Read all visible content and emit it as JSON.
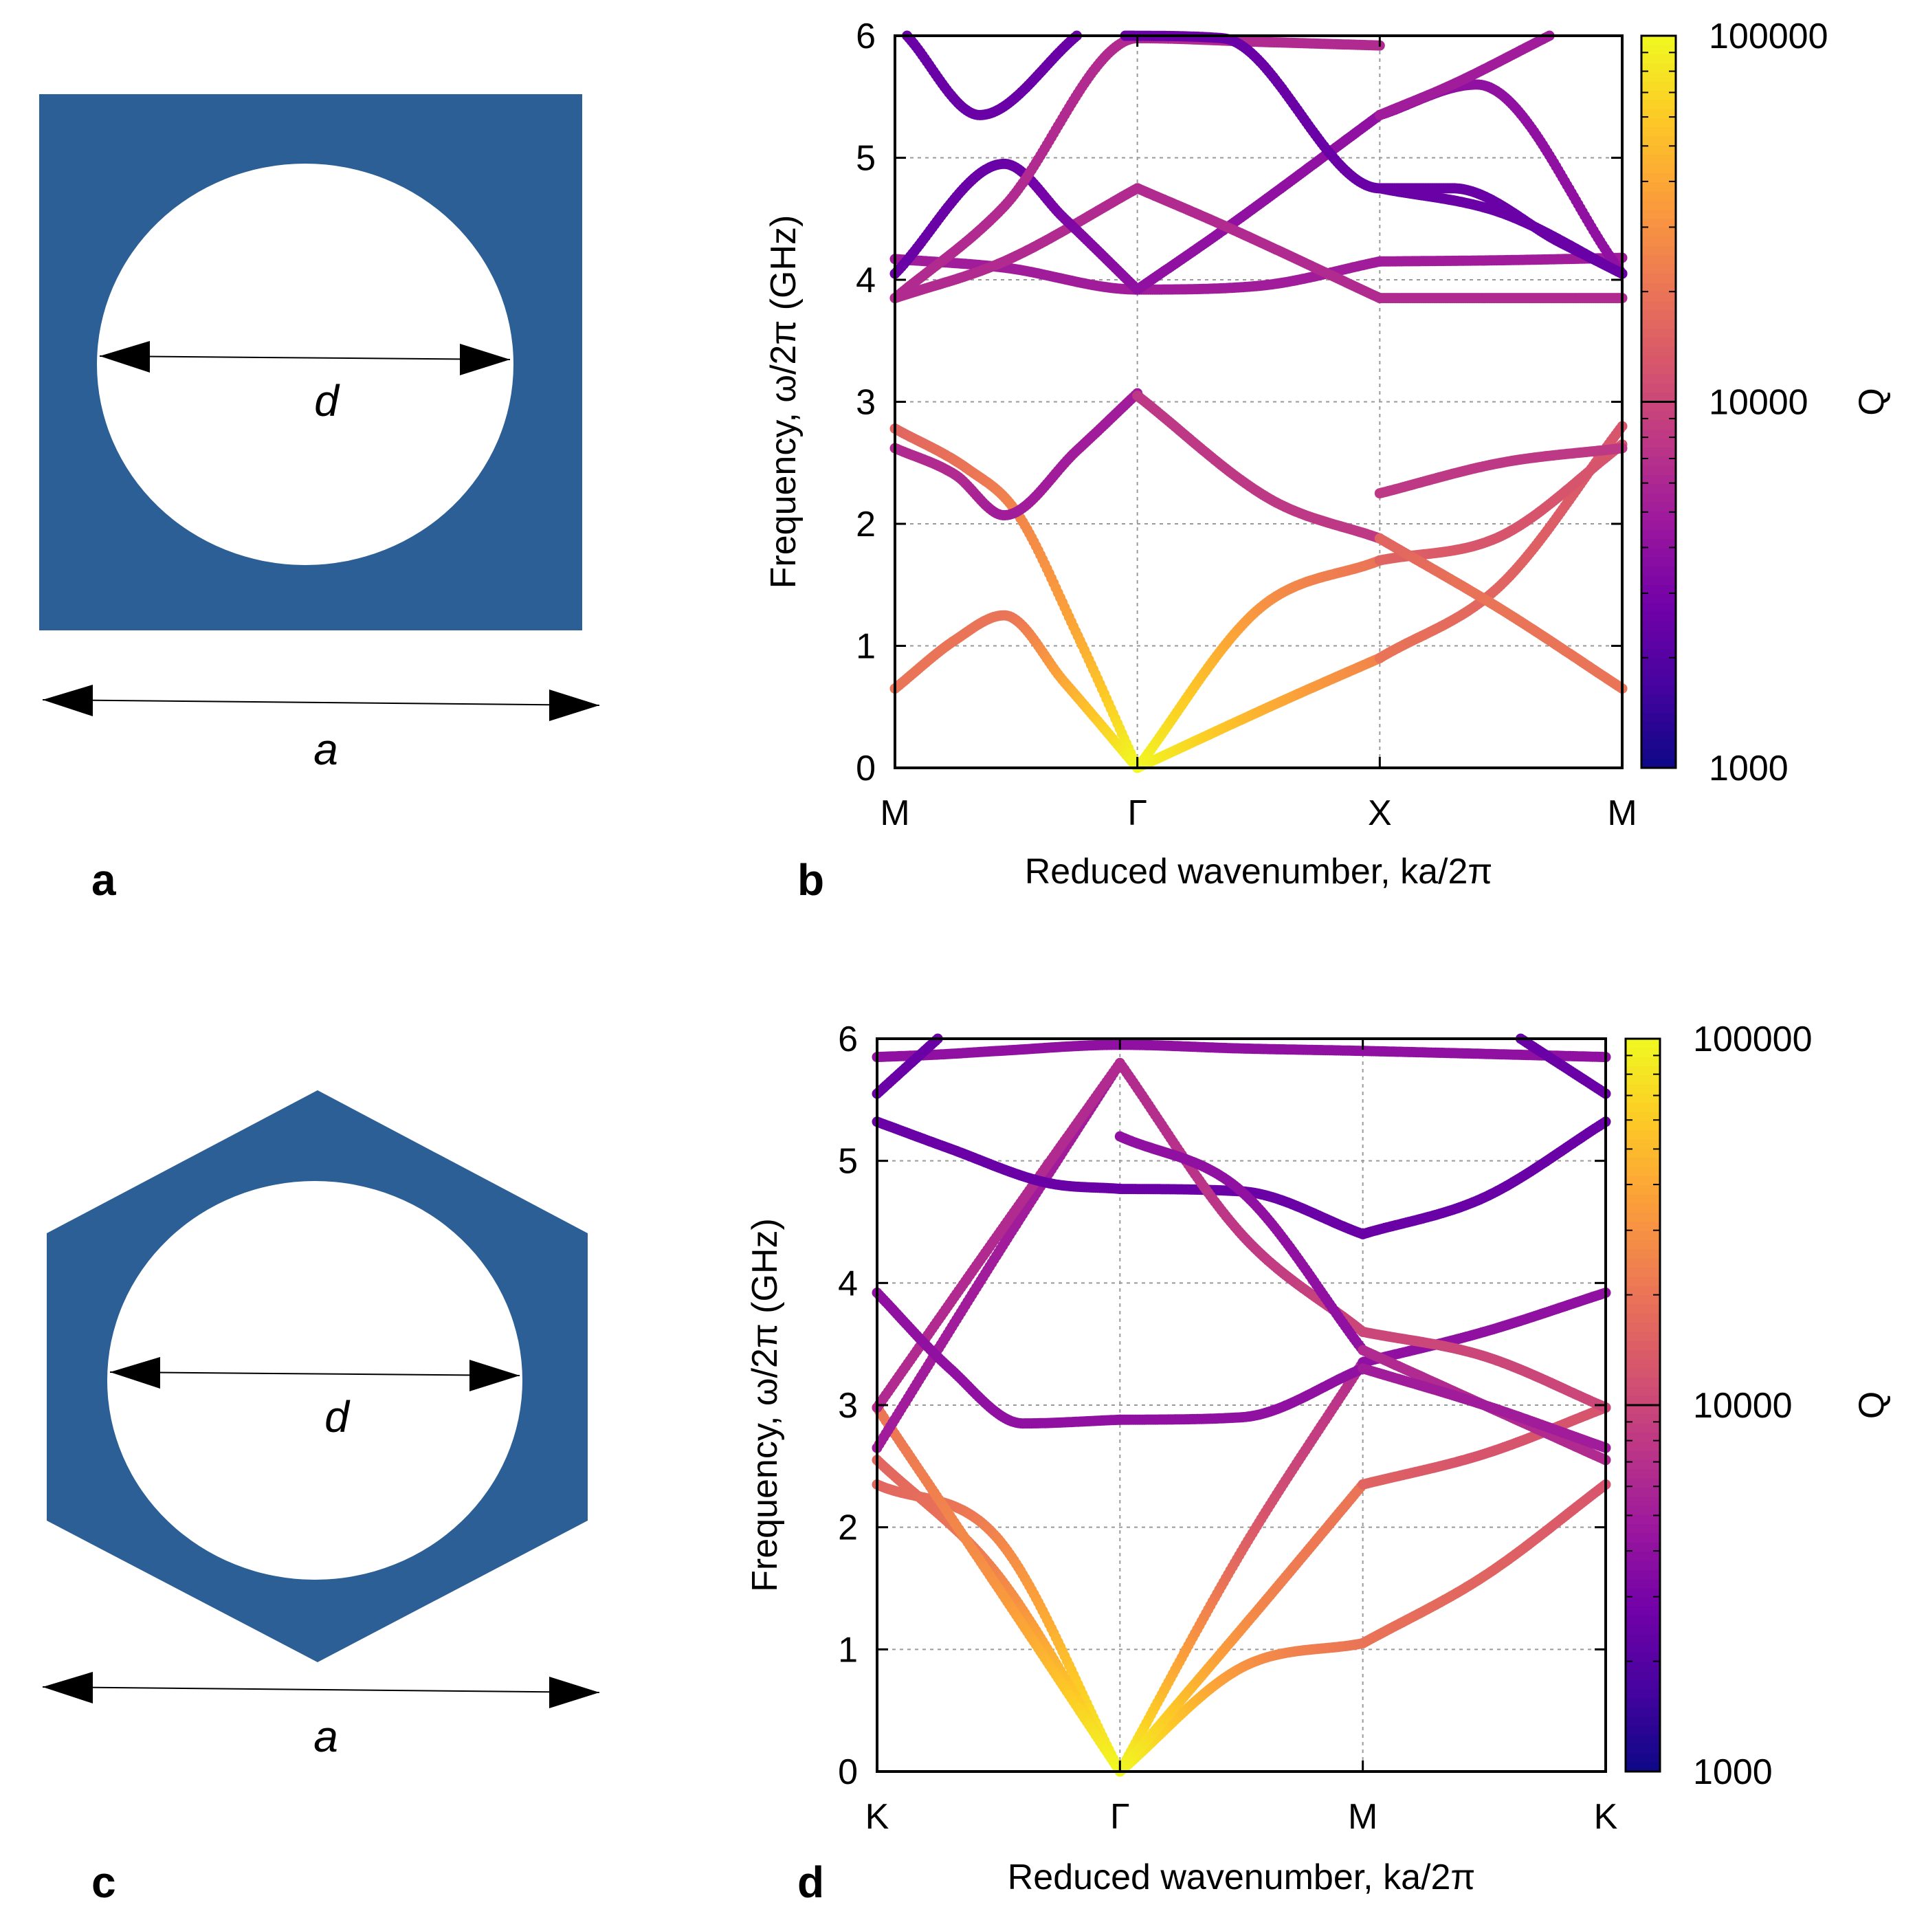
{
  "colors": {
    "cell_fill": "#2c5f95",
    "hole_fill": "#ffffff",
    "axis": "#000000",
    "grid": "#9a9a9a"
  },
  "colormap": [
    "#0d0887",
    "#46039f",
    "#7201a8",
    "#9c179e",
    "#bd3786",
    "#d8576b",
    "#ed7953",
    "#fb9f3a",
    "#fdca26",
    "#f0f921"
  ],
  "panel_a": {
    "letter": "a",
    "hole_label": "d",
    "width_label": "a",
    "shape": "square unit cell with circular hole"
  },
  "panel_c": {
    "letter": "c",
    "hole_label": "d",
    "width_label": "a",
    "shape": "hexagonal unit cell with circular hole"
  },
  "chart_data": [
    {
      "id": "b",
      "letter": "b",
      "type": "scatter",
      "title": "",
      "xlabel": "Reduced wavenumber, ka/2π",
      "ylabel": "Frequency, ω/2π (GHz)",
      "xticks": [
        "M",
        "Γ",
        "X",
        "M"
      ],
      "xticks_pos": [
        0,
        1,
        2,
        3
      ],
      "ylim": [
        0,
        6
      ],
      "yticks": [
        "0",
        "1",
        "2",
        "3",
        "4",
        "5",
        "6"
      ],
      "colorbar": {
        "label": "Q",
        "scale": "log",
        "range": [
          1000,
          100000
        ],
        "ticks": [
          "1000",
          "10000",
          "100000"
        ]
      },
      "series": [
        {
          "name": "band1",
          "x": [
            0,
            0.25,
            0.45,
            0.7,
            1
          ],
          "y": [
            0.65,
            1.05,
            1.25,
            0.7,
            0
          ],
          "q_log": [
            4.3,
            4.3,
            4.3,
            4.6,
            5
          ]
        },
        {
          "name": "band2",
          "x": [
            0,
            0.3,
            0.5,
            0.75,
            1
          ],
          "y": [
            2.78,
            2.45,
            2.1,
            1.1,
            0
          ],
          "q_log": [
            4.2,
            4.3,
            4.4,
            4.6,
            5
          ]
        },
        {
          "name": "band3",
          "x": [
            0,
            0.25,
            0.45,
            0.75,
            1
          ],
          "y": [
            2.62,
            2.4,
            2.07,
            2.6,
            3.07
          ],
          "q_log": [
            3.8,
            3.8,
            3.7,
            3.7,
            3.7
          ]
        },
        {
          "name": "band4",
          "x": [
            0,
            0.45,
            1,
            1.5,
            2
          ],
          "y": [
            4.17,
            4.1,
            3.92,
            3.95,
            4.15
          ],
          "q_log": [
            3.7,
            3.7,
            3.7,
            3.7,
            3.7
          ]
        },
        {
          "name": "band5",
          "x": [
            0,
            0.45,
            1
          ],
          "y": [
            3.85,
            4.15,
            4.75
          ],
          "q_log": [
            3.8,
            3.8,
            3.8
          ]
        },
        {
          "name": "band6",
          "x": [
            0,
            0.45,
            0.7,
            1
          ],
          "y": [
            4.05,
            4.95,
            4.5,
            3.92
          ],
          "q_log": [
            3.4,
            3.4,
            3.5,
            3.6
          ]
        },
        {
          "name": "band7",
          "x": [
            1,
            1.35,
            2
          ],
          "y": [
            3.92,
            4.4,
            5.35
          ],
          "q_log": [
            3.6,
            3.6,
            3.6
          ]
        },
        {
          "name": "band8",
          "x": [
            1,
            1.35,
            2
          ],
          "y": [
            4.75,
            4.45,
            3.85
          ],
          "q_log": [
            3.8,
            3.8,
            3.8
          ]
        },
        {
          "name": "band9",
          "x": [
            0,
            0.45,
            1,
            1.5,
            2
          ],
          "y": [
            3.85,
            4.6,
            5.98,
            5.95,
            5.92
          ],
          "q_log": [
            3.8,
            3.8,
            3.8,
            3.8,
            3.8
          ]
        },
        {
          "name": "band10",
          "x": [
            1,
            1.55,
            2
          ],
          "y": [
            3.05,
            2.2,
            1.88
          ],
          "q_log": [
            3.9,
            3.9,
            3.9
          ]
        },
        {
          "name": "band11",
          "x": [
            1,
            1.5,
            2
          ],
          "y": [
            0,
            1.3,
            1.7
          ],
          "q_log": [
            5,
            4.5,
            4.3
          ]
        },
        {
          "name": "band12",
          "x": [
            1,
            1.6,
            2
          ],
          "y": [
            0,
            0.55,
            0.9
          ],
          "q_log": [
            5,
            4.6,
            4.4
          ]
        },
        {
          "name": "band13",
          "x": [
            2,
            2.5,
            3
          ],
          "y": [
            0.9,
            1.5,
            2.8
          ],
          "q_log": [
            4.3,
            4.2,
            4.1
          ]
        },
        {
          "name": "band14",
          "x": [
            2,
            2.5,
            3
          ],
          "y": [
            1.7,
            1.9,
            2.65
          ],
          "q_log": [
            4.2,
            4.1,
            4.1
          ]
        },
        {
          "name": "band15",
          "x": [
            2,
            2.5,
            3
          ],
          "y": [
            1.88,
            1.3,
            0.65
          ],
          "q_log": [
            4.2,
            4.3,
            4.3
          ]
        },
        {
          "name": "band16",
          "x": [
            2,
            2.5,
            3
          ],
          "y": [
            2.25,
            2.5,
            2.62
          ],
          "q_log": [
            3.9,
            3.9,
            3.9
          ]
        },
        {
          "name": "band17",
          "x": [
            2,
            2.5,
            3
          ],
          "y": [
            3.85,
            3.85,
            3.85
          ],
          "q_log": [
            3.8,
            3.8,
            3.8
          ]
        },
        {
          "name": "band18",
          "x": [
            2,
            2.5,
            3
          ],
          "y": [
            4.15,
            4.16,
            4.18
          ],
          "q_log": [
            3.7,
            3.7,
            3.7
          ]
        },
        {
          "name": "band19",
          "x": [
            2,
            2.5,
            3
          ],
          "y": [
            4.75,
            4.55,
            4.05
          ],
          "q_log": [
            3.4,
            3.4,
            3.4
          ]
        },
        {
          "name": "band20",
          "x": [
            2,
            2.4,
            3
          ],
          "y": [
            5.35,
            5.6,
            4.05
          ],
          "q_log": [
            3.6,
            3.6,
            3.6
          ]
        },
        {
          "name": "band21",
          "x": [
            2,
            2.3,
            2.7
          ],
          "y": [
            5.35,
            5.6,
            6
          ],
          "q_log": [
            3.7,
            3.7,
            3.7
          ]
        },
        {
          "name": "band22",
          "x": [
            0.95,
            1.35,
            2,
            2.3,
            2.75,
            3
          ],
          "y": [
            6,
            5.98,
            4.75,
            4.75,
            4.3,
            4.05
          ],
          "q_log": [
            3.4,
            3.4,
            3.4,
            3.4,
            3.4,
            3.4
          ]
        },
        {
          "name": "band23",
          "x": [
            0.05,
            0.35,
            0.75
          ],
          "y": [
            6,
            5.35,
            6
          ],
          "q_log": [
            3.4,
            3.4,
            3.4
          ]
        }
      ]
    },
    {
      "id": "d",
      "letter": "d",
      "type": "scatter",
      "title": "",
      "xlabel": "Reduced wavenumber, ka/2π",
      "ylabel": "Frequency, ω/2π (GHz)",
      "xticks": [
        "K",
        "Γ",
        "M",
        "K"
      ],
      "xticks_pos": [
        0,
        1,
        2,
        3
      ],
      "ylim": [
        0,
        6
      ],
      "yticks": [
        "0",
        "1",
        "2",
        "3",
        "4",
        "5",
        "6"
      ],
      "colorbar": {
        "label": "Q",
        "scale": "log",
        "range": [
          1000,
          100000
        ],
        "ticks": [
          "1000",
          "10000",
          "100000"
        ]
      },
      "series": [
        {
          "name": "band1",
          "x": [
            0,
            0.5,
            1
          ],
          "y": [
            2.35,
            1.9,
            0
          ],
          "q_log": [
            4.2,
            4.4,
            5
          ]
        },
        {
          "name": "band2",
          "x": [
            0,
            0.5,
            1
          ],
          "y": [
            2.55,
            1.6,
            0
          ],
          "q_log": [
            4.2,
            4.4,
            5
          ]
        },
        {
          "name": "band3",
          "x": [
            0,
            0.5,
            1
          ],
          "y": [
            2.98,
            1.5,
            0
          ],
          "q_log": [
            4.3,
            4.5,
            5
          ]
        },
        {
          "name": "band4",
          "x": [
            0,
            0.5,
            1
          ],
          "y": [
            2.65,
            4.25,
            5.8
          ],
          "q_log": [
            3.7,
            3.7,
            3.7
          ]
        },
        {
          "name": "band5",
          "x": [
            0,
            0.5,
            1
          ],
          "y": [
            2.98,
            4.4,
            5.8
          ],
          "q_log": [
            3.8,
            3.8,
            3.8
          ]
        },
        {
          "name": "band6",
          "x": [
            0,
            0.3,
            0.6,
            1
          ],
          "y": [
            3.92,
            3.3,
            2.85,
            2.88
          ],
          "q_log": [
            3.6,
            3.6,
            3.6,
            3.6
          ]
        },
        {
          "name": "band7",
          "x": [
            0,
            0.3,
            0.7,
            1
          ],
          "y": [
            5.32,
            5.1,
            4.82,
            4.77
          ],
          "q_log": [
            3.4,
            3.4,
            3.4,
            3.4
          ]
        },
        {
          "name": "band8",
          "x": [
            0,
            0.25,
            0.5,
            1,
            1.5,
            2,
            3
          ],
          "y": [
            5.85,
            5.87,
            5.9,
            5.95,
            5.92,
            5.9,
            5.85
          ],
          "q_log": [
            3.6,
            3.6,
            3.6,
            3.6,
            3.6,
            3.6,
            3.6
          ]
        },
        {
          "name": "band9",
          "x": [
            0,
            0.25
          ],
          "y": [
            5.55,
            6
          ],
          "q_log": [
            3.4,
            3.4
          ]
        },
        {
          "name": "band10",
          "x": [
            1,
            1.5,
            2
          ],
          "y": [
            0,
            1.8,
            3.35
          ],
          "q_log": [
            5,
            4.2,
            3.8
          ]
        },
        {
          "name": "band11",
          "x": [
            1,
            1.5,
            2
          ],
          "y": [
            0,
            0.85,
            1.05
          ],
          "q_log": [
            5,
            4.5,
            4.3
          ]
        },
        {
          "name": "band12",
          "x": [
            1,
            1.6,
            2
          ],
          "y": [
            0,
            1.4,
            2.35
          ],
          "q_log": [
            5,
            4.4,
            4.3
          ]
        },
        {
          "name": "band13",
          "x": [
            1,
            1.5,
            2
          ],
          "y": [
            2.88,
            2.9,
            3.3
          ],
          "q_log": [
            3.6,
            3.6,
            3.6
          ]
        },
        {
          "name": "band14",
          "x": [
            1,
            1.5,
            2
          ],
          "y": [
            4.77,
            4.75,
            4.4
          ],
          "q_log": [
            3.4,
            3.4,
            3.4
          ]
        },
        {
          "name": "band15",
          "x": [
            1,
            1.5,
            2
          ],
          "y": [
            5.8,
            4.4,
            3.6
          ],
          "q_log": [
            3.8,
            3.9,
            4.0
          ]
        },
        {
          "name": "band16",
          "x": [
            1,
            1.5,
            2
          ],
          "y": [
            5.2,
            4.75,
            3.45
          ],
          "q_log": [
            3.6,
            3.6,
            3.6
          ]
        },
        {
          "name": "band17",
          "x": [
            2,
            2.5,
            3
          ],
          "y": [
            1.05,
            1.6,
            2.35
          ],
          "q_log": [
            4.3,
            4.2,
            4.1
          ]
        },
        {
          "name": "band18",
          "x": [
            2,
            2.5,
            3
          ],
          "y": [
            2.35,
            2.6,
            2.98
          ],
          "q_log": [
            4.2,
            4.1,
            4.1
          ]
        },
        {
          "name": "band19",
          "x": [
            2,
            2.5,
            3
          ],
          "y": [
            3.35,
            3.6,
            3.92
          ],
          "q_log": [
            3.6,
            3.6,
            3.6
          ]
        },
        {
          "name": "band20",
          "x": [
            2,
            2.5,
            3
          ],
          "y": [
            3.6,
            3.4,
            2.98
          ],
          "q_log": [
            4.0,
            4.0,
            4.0
          ]
        },
        {
          "name": "band21",
          "x": [
            2,
            2.5,
            3
          ],
          "y": [
            3.45,
            3,
            2.55
          ],
          "q_log": [
            3.8,
            3.8,
            3.8
          ]
        },
        {
          "name": "band22",
          "x": [
            2,
            2.5,
            3
          ],
          "y": [
            3.3,
            3.0,
            2.65
          ],
          "q_log": [
            3.7,
            3.7,
            3.7
          ]
        },
        {
          "name": "band23",
          "x": [
            2,
            2.5,
            3
          ],
          "y": [
            4.4,
            4.7,
            5.32
          ],
          "q_log": [
            3.4,
            3.4,
            3.4
          ]
        },
        {
          "name": "band24",
          "x": [
            2.65,
            3
          ],
          "y": [
            6,
            5.55
          ],
          "q_log": [
            3.4,
            3.4
          ]
        }
      ]
    }
  ]
}
